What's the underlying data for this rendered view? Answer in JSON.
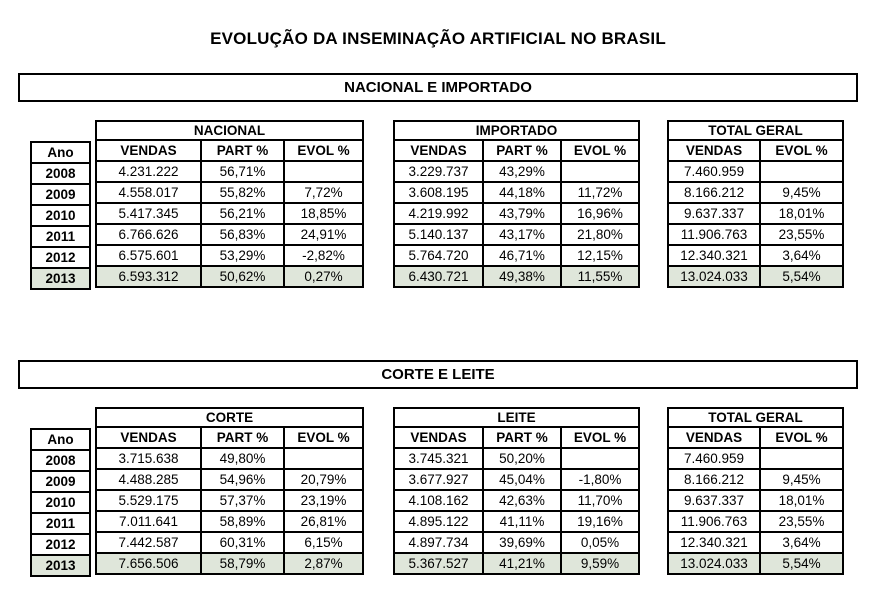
{
  "title": "EVOLUÇÃO DA INSEMINAÇÃO ARTIFICIAL NO BRASIL",
  "colors": {
    "highlight_row": "#dfe6da",
    "border": "#000000",
    "background": "#ffffff"
  },
  "sections": [
    {
      "header": "NACIONAL E IMPORTADO",
      "ano_header": "Ano",
      "years": [
        "2008",
        "2009",
        "2010",
        "2011",
        "2012",
        "2013"
      ],
      "tables": [
        {
          "name": "NACIONAL",
          "columns": [
            "VENDAS",
            "PART %",
            "EVOL %"
          ],
          "rows": [
            [
              "4.231.222",
              "56,71%",
              ""
            ],
            [
              "4.558.017",
              "55,82%",
              "7,72%"
            ],
            [
              "5.417.345",
              "56,21%",
              "18,85%"
            ],
            [
              "6.766.626",
              "56,83%",
              "24,91%"
            ],
            [
              "6.575.601",
              "53,29%",
              "-2,82%"
            ],
            [
              "6.593.312",
              "50,62%",
              "0,27%"
            ]
          ]
        },
        {
          "name": "IMPORTADO",
          "columns": [
            "VENDAS",
            "PART %",
            "EVOL %"
          ],
          "rows": [
            [
              "3.229.737",
              "43,29%",
              ""
            ],
            [
              "3.608.195",
              "44,18%",
              "11,72%"
            ],
            [
              "4.219.992",
              "43,79%",
              "16,96%"
            ],
            [
              "5.140.137",
              "43,17%",
              "21,80%"
            ],
            [
              "5.764.720",
              "46,71%",
              "12,15%"
            ],
            [
              "6.430.721",
              "49,38%",
              "11,55%"
            ]
          ]
        },
        {
          "name": "TOTAL GERAL",
          "columns": [
            "VENDAS",
            "EVOL %"
          ],
          "rows": [
            [
              "7.460.959",
              ""
            ],
            [
              "8.166.212",
              "9,45%"
            ],
            [
              "9.637.337",
              "18,01%"
            ],
            [
              "11.906.763",
              "23,55%"
            ],
            [
              "12.340.321",
              "3,64%"
            ],
            [
              "13.024.033",
              "5,54%"
            ]
          ]
        }
      ]
    },
    {
      "header": "CORTE E LEITE",
      "ano_header": "Ano",
      "years": [
        "2008",
        "2009",
        "2010",
        "2011",
        "2012",
        "2013"
      ],
      "tables": [
        {
          "name": "CORTE",
          "columns": [
            "VENDAS",
            "PART %",
            "EVOL %"
          ],
          "rows": [
            [
              "3.715.638",
              "49,80%",
              ""
            ],
            [
              "4.488.285",
              "54,96%",
              "20,79%"
            ],
            [
              "5.529.175",
              "57,37%",
              "23,19%"
            ],
            [
              "7.011.641",
              "58,89%",
              "26,81%"
            ],
            [
              "7.442.587",
              "60,31%",
              "6,15%"
            ],
            [
              "7.656.506",
              "58,79%",
              "2,87%"
            ]
          ]
        },
        {
          "name": "LEITE",
          "columns": [
            "VENDAS",
            "PART %",
            "EVOL %"
          ],
          "rows": [
            [
              "3.745.321",
              "50,20%",
              ""
            ],
            [
              "3.677.927",
              "45,04%",
              "-1,80%"
            ],
            [
              "4.108.162",
              "42,63%",
              "11,70%"
            ],
            [
              "4.895.122",
              "41,11%",
              "19,16%"
            ],
            [
              "4.897.734",
              "39,69%",
              "0,05%"
            ],
            [
              "5.367.527",
              "41,21%",
              "9,59%"
            ]
          ]
        },
        {
          "name": "TOTAL GERAL",
          "columns": [
            "VENDAS",
            "EVOL %"
          ],
          "rows": [
            [
              "7.460.959",
              ""
            ],
            [
              "8.166.212",
              "9,45%"
            ],
            [
              "9.637.337",
              "18,01%"
            ],
            [
              "11.906.763",
              "23,55%"
            ],
            [
              "12.340.321",
              "3,64%"
            ],
            [
              "13.024.033",
              "5,54%"
            ]
          ]
        }
      ]
    }
  ]
}
